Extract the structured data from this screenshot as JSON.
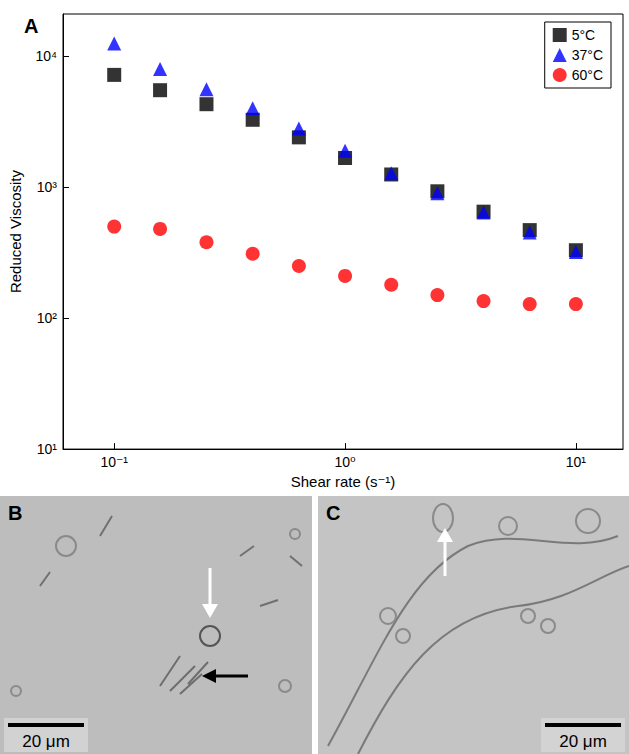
{
  "chart_data": {
    "type": "scatter",
    "annotations": [
      "A"
    ],
    "xlabel": "Shear rate (s⁻¹)",
    "ylabel": "Reduced Viscosity",
    "x": [
      0.1,
      0.158,
      0.251,
      0.398,
      0.631,
      1,
      1.585,
      2.512,
      3.981,
      6.31,
      10
    ],
    "series": [
      {
        "name": "5°C",
        "color": "#000000",
        "marker": "square",
        "values": [
          7200,
          5500,
          4300,
          3270,
          2400,
          1670,
          1250,
          930,
          650,
          470,
          330
        ]
      },
      {
        "name": "37°C",
        "color": "#0000ff",
        "marker": "triangle",
        "values": [
          12500,
          8000,
          5600,
          4000,
          2800,
          1900,
          1280,
          900,
          640,
          450,
          320
        ]
      },
      {
        "name": "60°C",
        "color": "#ff0000",
        "marker": "circle",
        "values": [
          500,
          480,
          380,
          310,
          250,
          210,
          180,
          150,
          135,
          128,
          128
        ]
      }
    ],
    "xlim": [
      0.06,
      16
    ],
    "ylim": [
      10,
      21000
    ],
    "xticks": [
      {
        "value": 0.1,
        "label": "10⁻¹"
      },
      {
        "value": 1,
        "label": "10⁰"
      },
      {
        "value": 10,
        "label": "10¹"
      }
    ],
    "yticks": [
      {
        "value": 10,
        "label": "10¹"
      },
      {
        "value": 100,
        "label": "10²"
      },
      {
        "value": 1000,
        "label": "10³"
      },
      {
        "value": 10000,
        "label": "10⁴"
      }
    ],
    "log": true,
    "grid": false,
    "legend": "upper right"
  },
  "images": [
    {
      "label": "B",
      "scale_bar": "20 μm"
    },
    {
      "label": "C",
      "scale_bar": "20 μm"
    }
  ]
}
